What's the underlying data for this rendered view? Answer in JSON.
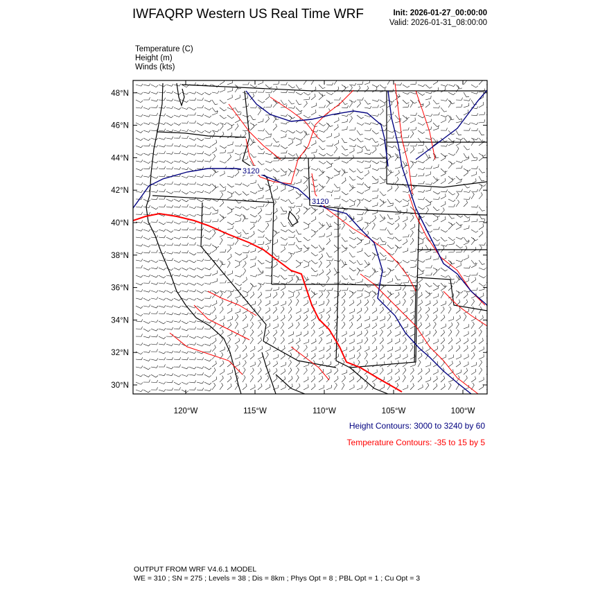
{
  "header": {
    "title": "IWFAQRP Western US Real Time WRF",
    "init": "Init: 2026-01-27_00:00:00",
    "valid": "Valid: 2026-01-31_08:00:00"
  },
  "variables": [
    "Temperature   (C)",
    "Height   (m)",
    "Winds   (kts)"
  ],
  "map": {
    "lat_labels": [
      "48°N",
      "46°N",
      "44°N",
      "42°N",
      "40°N",
      "38°N",
      "36°N",
      "34°N",
      "32°N",
      "30°N"
    ],
    "lat_values": [
      48,
      46,
      44,
      42,
      40,
      38,
      36,
      34,
      32,
      30
    ],
    "lon_labels": [
      "120°W",
      "115°W",
      "110°W",
      "105°W",
      "100°W"
    ],
    "lon_values": [
      -120,
      -115,
      -110,
      -105,
      -100
    ],
    "contour_labels": [
      "3120",
      "3120"
    ],
    "colors": {
      "height": "#00007f",
      "temperature": "#ff0000",
      "boundaries": "#000000"
    }
  },
  "legend": {
    "height": "Height Contours: 3000 to 3240 by 60",
    "temperature": "Temperature Contours: -35 to 15 by 5"
  },
  "footer": {
    "line1": "OUTPUT FROM WRF V4.6.1 MODEL",
    "line2": "WE = 310 ; SN = 275 ; Levels = 38 ; Dis = 8km ; Phys Opt = 8 ; PBL Opt = 1 ; Cu Opt = 3"
  }
}
